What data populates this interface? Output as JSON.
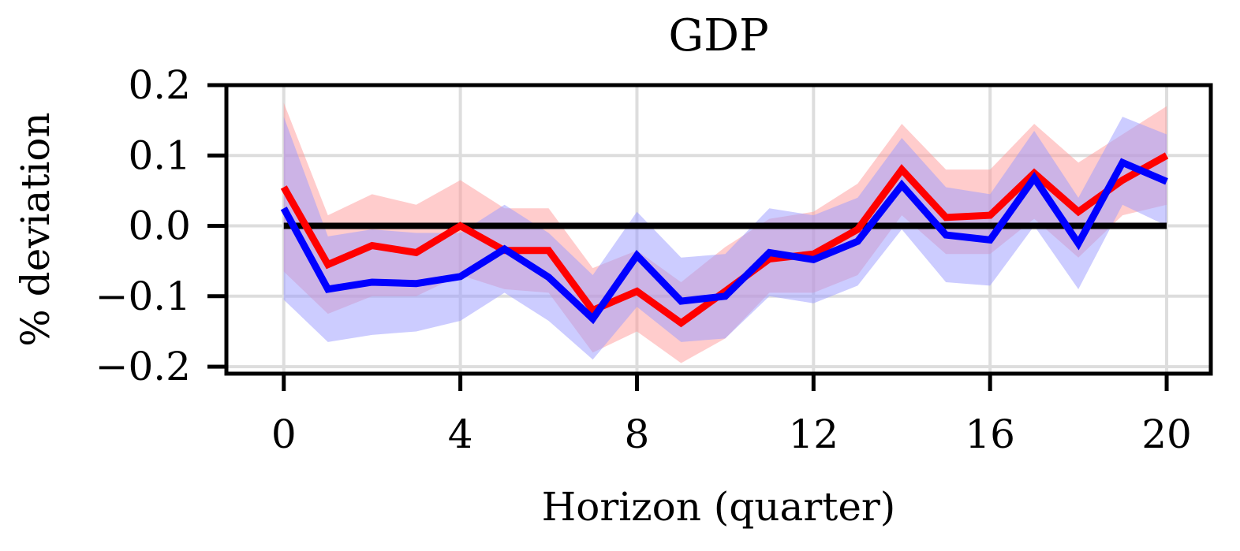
{
  "chart_data": {
    "type": "line",
    "title": "GDP",
    "xlabel": "Horizon (quarter)",
    "ylabel": "% deviation",
    "xlim": [
      -1.3,
      21.0
    ],
    "ylim": [
      -0.21,
      0.2
    ],
    "xticks": [
      0,
      4,
      8,
      12,
      16,
      20
    ],
    "xtick_labels": [
      "0",
      "4",
      "8",
      "12",
      "16",
      "20"
    ],
    "yticks": [
      -0.2,
      -0.1,
      0.0,
      0.1,
      0.2
    ],
    "ytick_labels": [
      "−0.2",
      "−0.1",
      "0.0",
      "0.1",
      "0.2"
    ],
    "grid": true,
    "zero_line": 0.0,
    "x": [
      0,
      1,
      2,
      3,
      4,
      5,
      6,
      7,
      8,
      9,
      10,
      11,
      12,
      13,
      14,
      15,
      16,
      17,
      18,
      19,
      20
    ],
    "series": [
      {
        "color": "#ff0000",
        "band_color": "#ff9999",
        "values": [
          0.055,
          -0.055,
          -0.028,
          -0.038,
          0.0,
          -0.035,
          -0.035,
          -0.12,
          -0.093,
          -0.138,
          -0.093,
          -0.047,
          -0.04,
          -0.005,
          0.08,
          0.012,
          0.015,
          0.075,
          0.02,
          0.065,
          0.1
        ],
        "lower": [
          -0.065,
          -0.125,
          -0.1,
          -0.1,
          -0.07,
          -0.09,
          -0.095,
          -0.18,
          -0.15,
          -0.195,
          -0.16,
          -0.095,
          -0.095,
          -0.07,
          0.015,
          -0.04,
          -0.04,
          0.01,
          -0.045,
          0.015,
          0.03
        ],
        "upper": [
          0.175,
          0.015,
          0.045,
          0.03,
          0.065,
          0.025,
          0.025,
          -0.06,
          -0.035,
          -0.08,
          -0.03,
          0.01,
          0.02,
          0.06,
          0.145,
          0.08,
          0.08,
          0.145,
          0.09,
          0.13,
          0.17
        ]
      },
      {
        "color": "#0000ff",
        "band_color": "#9999ff",
        "values": [
          0.025,
          -0.09,
          -0.08,
          -0.082,
          -0.072,
          -0.033,
          -0.073,
          -0.132,
          -0.042,
          -0.107,
          -0.1,
          -0.038,
          -0.048,
          -0.022,
          0.058,
          -0.013,
          -0.02,
          0.068,
          -0.025,
          0.09,
          0.063
        ],
        "lower": [
          -0.105,
          -0.165,
          -0.155,
          -0.15,
          -0.135,
          -0.095,
          -0.135,
          -0.19,
          -0.115,
          -0.165,
          -0.16,
          -0.1,
          -0.11,
          -0.085,
          -0.005,
          -0.08,
          -0.085,
          0.0,
          -0.09,
          0.03,
          0.0
        ],
        "upper": [
          0.155,
          -0.015,
          -0.005,
          -0.01,
          -0.01,
          0.03,
          -0.01,
          -0.07,
          0.02,
          -0.045,
          -0.04,
          0.025,
          0.015,
          0.04,
          0.125,
          0.055,
          0.045,
          0.135,
          0.04,
          0.155,
          0.13
        ]
      }
    ]
  }
}
